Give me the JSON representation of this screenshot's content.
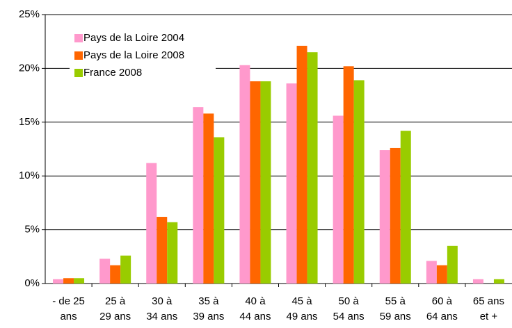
{
  "chart_data": {
    "type": "bar",
    "categories": [
      [
        "- de 25",
        "ans"
      ],
      [
        "25 à",
        "29 ans"
      ],
      [
        "30 à",
        "34 ans"
      ],
      [
        "35 à",
        "39 ans"
      ],
      [
        "40 à",
        "44 ans"
      ],
      [
        "45 à",
        "49 ans"
      ],
      [
        "50 à",
        "54 ans"
      ],
      [
        "55 à",
        "59 ans"
      ],
      [
        "60 à",
        "64 ans"
      ],
      [
        "65 ans",
        "et +"
      ]
    ],
    "series": [
      {
        "name": "Pays de la Loire 2004",
        "color": "#ff99cc",
        "values": [
          0.4,
          2.3,
          11.2,
          16.4,
          20.3,
          18.6,
          15.6,
          12.4,
          2.1,
          0.4
        ]
      },
      {
        "name": "Pays de la Loire 2008",
        "color": "#ff6600",
        "values": [
          0.5,
          1.7,
          6.2,
          15.8,
          18.8,
          22.1,
          20.2,
          12.6,
          1.7,
          0
        ]
      },
      {
        "name": "France 2008",
        "color": "#99cc00",
        "values": [
          0.5,
          2.6,
          5.7,
          13.6,
          18.8,
          21.5,
          18.9,
          14.2,
          3.5,
          0.4
        ]
      }
    ],
    "ylim": [
      0,
      25
    ],
    "yticks": [
      {
        "value": 0,
        "label": "0%"
      },
      {
        "value": 5,
        "label": "5%"
      },
      {
        "value": 10,
        "label": "10%"
      },
      {
        "value": 15,
        "label": "15%"
      },
      {
        "value": 20,
        "label": "20%"
      },
      {
        "value": 25,
        "label": "25%"
      }
    ],
    "grid": true,
    "legend": "upper-left"
  }
}
